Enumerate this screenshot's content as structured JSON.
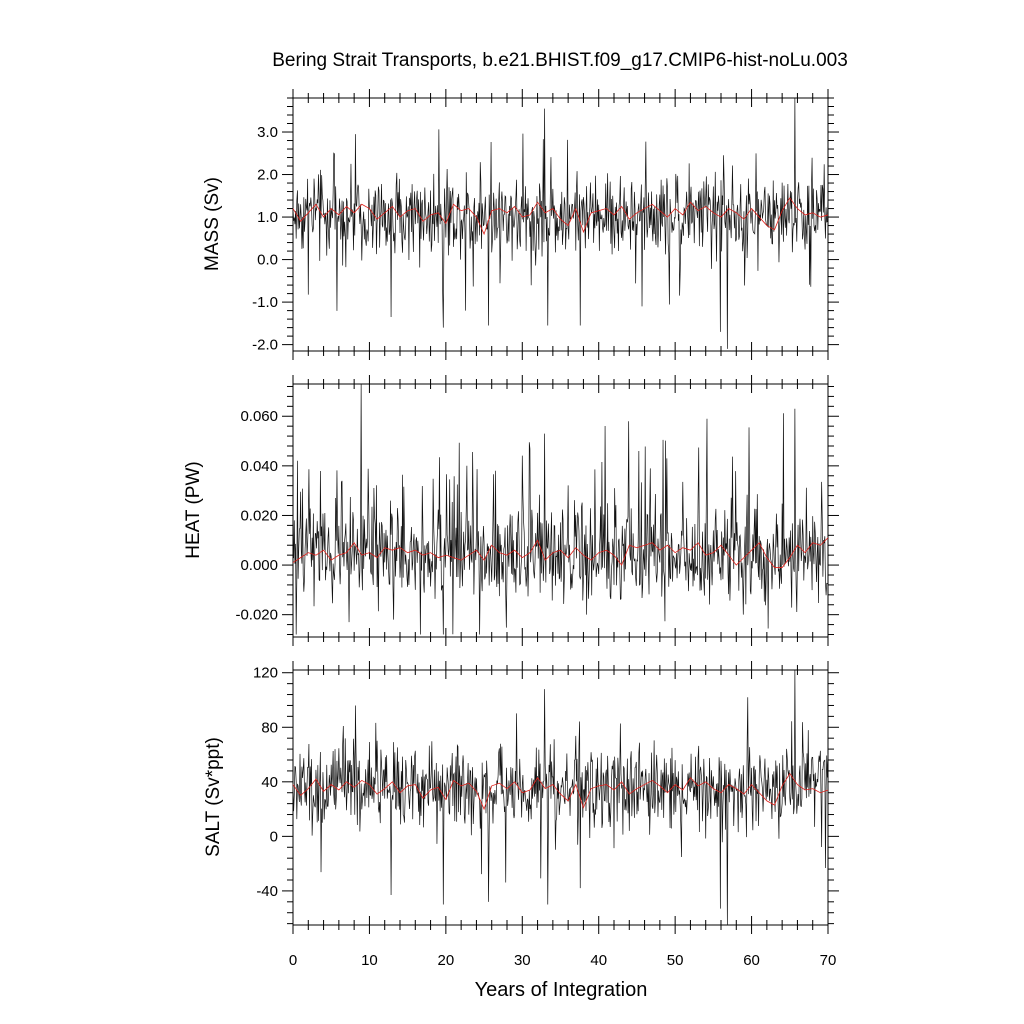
{
  "chart_data": {
    "type": "line",
    "title": "Bering Strait Transports, b.e21.BHIST.f09_g17.CMIP6-hist-noLu.003",
    "xlabel": "Years of Integration",
    "xlim": [
      0,
      70
    ],
    "x_ticks": [
      "0",
      "10",
      "20",
      "30",
      "40",
      "50",
      "60",
      "70"
    ],
    "series_colors": {
      "monthly": "#111111",
      "annual": "#e0201a"
    },
    "panels": [
      {
        "key": "mass",
        "ylabel": "MASS (Sv)",
        "ylim": [
          -2.15,
          3.8
        ],
        "ticks": [
          -2.0,
          -1.0,
          0.0,
          1.0,
          2.0,
          3.0
        ],
        "tick_labels": [
          "-2.0",
          "-1.0",
          "0.0",
          "1.0",
          "2.0",
          "3.0"
        ],
        "monthly_mean": 1.05,
        "monthly_spread": 0.55,
        "monthly_min": -2.1,
        "monthly_max": 3.8,
        "spikes": [
          [
            8.2,
            2.95
          ],
          [
            32.9,
            3.55
          ],
          [
            65.7,
            3.8
          ],
          [
            56.8,
            -2.1
          ],
          [
            55.9,
            -1.7
          ],
          [
            19.7,
            -1.6
          ],
          [
            25.6,
            -1.55
          ],
          [
            37.6,
            -1.55
          ],
          [
            12.8,
            -1.35
          ],
          [
            22.6,
            -1.2
          ],
          [
            33.3,
            -1.55
          ],
          [
            45.7,
            -1.1
          ]
        ],
        "annual": [
          1.2,
          0.9,
          1.1,
          1.3,
          1.0,
          1.2,
          1.05,
          1.25,
          1.1,
          1.3,
          1.2,
          0.95,
          1.1,
          1.25,
          1.0,
          1.15,
          1.2,
          0.9,
          1.05,
          1.1,
          0.85,
          1.3,
          1.15,
          1.2,
          1.0,
          0.6,
          1.15,
          1.2,
          1.1,
          1.25,
          1.0,
          1.05,
          1.35,
          1.1,
          1.2,
          0.95,
          0.8,
          1.2,
          0.65,
          1.1,
          1.15,
          1.2,
          1.05,
          1.25,
          0.95,
          1.1,
          1.2,
          1.3,
          1.15,
          1.0,
          1.2,
          1.05,
          1.35,
          1.15,
          1.25,
          1.1,
          1.0,
          1.2,
          1.1,
          0.95,
          1.2,
          1.0,
          0.8,
          0.7,
          1.15,
          1.45,
          1.2,
          1.05,
          1.1,
          1.0,
          1.05
        ]
      },
      {
        "key": "heat",
        "ylabel": "HEAT (PW)",
        "ylim": [
          -0.029,
          0.073
        ],
        "ticks": [
          -0.02,
          0.0,
          0.02,
          0.04,
          0.06
        ],
        "tick_labels": [
          "-0.020",
          "0.000",
          "0.020",
          "0.040",
          "0.060"
        ],
        "monthly_mean": 0.004,
        "monthly_spread": 0.011,
        "monthly_min": -0.028,
        "monthly_max": 0.073,
        "spikes": [
          [
            8.9,
            0.073
          ],
          [
            65.7,
            0.063
          ],
          [
            54.2,
            0.059
          ],
          [
            43.9,
            0.058
          ],
          [
            32.9,
            0.053
          ],
          [
            19.7,
            -0.028
          ],
          [
            7.3,
            -0.023
          ],
          [
            13.2,
            -0.022
          ],
          [
            38.4,
            -0.02
          ],
          [
            58.9,
            -0.02
          ]
        ],
        "annual": [
          0.001,
          0.003,
          0.005,
          0.004,
          0.006,
          0.002,
          0.004,
          0.005,
          0.009,
          0.004,
          0.005,
          0.003,
          0.007,
          0.006,
          0.007,
          0.005,
          0.006,
          0.004,
          0.005,
          0.003,
          0.004,
          0.003,
          0.002,
          0.004,
          0.006,
          0.002,
          0.008,
          0.005,
          0.004,
          0.006,
          0.003,
          0.005,
          0.01,
          0.002,
          0.005,
          0.006,
          0.003,
          0.007,
          0.004,
          0.002,
          0.005,
          0.006,
          0.004,
          0.0,
          0.008,
          0.007,
          0.008,
          0.009,
          0.006,
          0.008,
          0.005,
          0.007,
          0.006,
          0.009,
          0.004,
          0.005,
          0.008,
          0.004,
          0.0,
          0.003,
          0.006,
          0.009,
          0.003,
          -0.001,
          -0.001,
          0.003,
          0.008,
          0.005,
          0.009,
          0.008,
          0.011
        ]
      },
      {
        "key": "salt",
        "ylabel": "SALT (Sv*ppt)",
        "ylim": [
          -65,
          122
        ],
        "ticks": [
          -40,
          0,
          40,
          80,
          120
        ],
        "tick_labels": [
          "-40",
          "0",
          "40",
          "80",
          "120"
        ],
        "monthly_mean": 36,
        "monthly_spread": 18,
        "monthly_min": -65,
        "monthly_max": 122,
        "spikes": [
          [
            8.2,
            96
          ],
          [
            32.9,
            108
          ],
          [
            65.7,
            122
          ],
          [
            56.8,
            -65
          ],
          [
            55.9,
            -53
          ],
          [
            19.7,
            -50
          ],
          [
            25.6,
            -48
          ],
          [
            33.3,
            -50
          ],
          [
            12.8,
            -43
          ],
          [
            37.6,
            -38
          ]
        ],
        "annual": [
          38,
          30,
          35,
          42,
          33,
          38,
          34,
          40,
          36,
          41,
          38,
          31,
          35,
          40,
          32,
          37,
          38,
          28,
          34,
          36,
          27,
          41,
          37,
          39,
          33,
          20,
          37,
          39,
          35,
          40,
          32,
          34,
          43,
          35,
          38,
          31,
          26,
          38,
          21,
          35,
          37,
          38,
          34,
          40,
          31,
          35,
          38,
          41,
          37,
          32,
          38,
          34,
          43,
          37,
          40,
          35,
          32,
          38,
          35,
          31,
          38,
          32,
          26,
          23,
          37,
          46,
          38,
          34,
          35,
          32,
          34
        ]
      }
    ]
  }
}
